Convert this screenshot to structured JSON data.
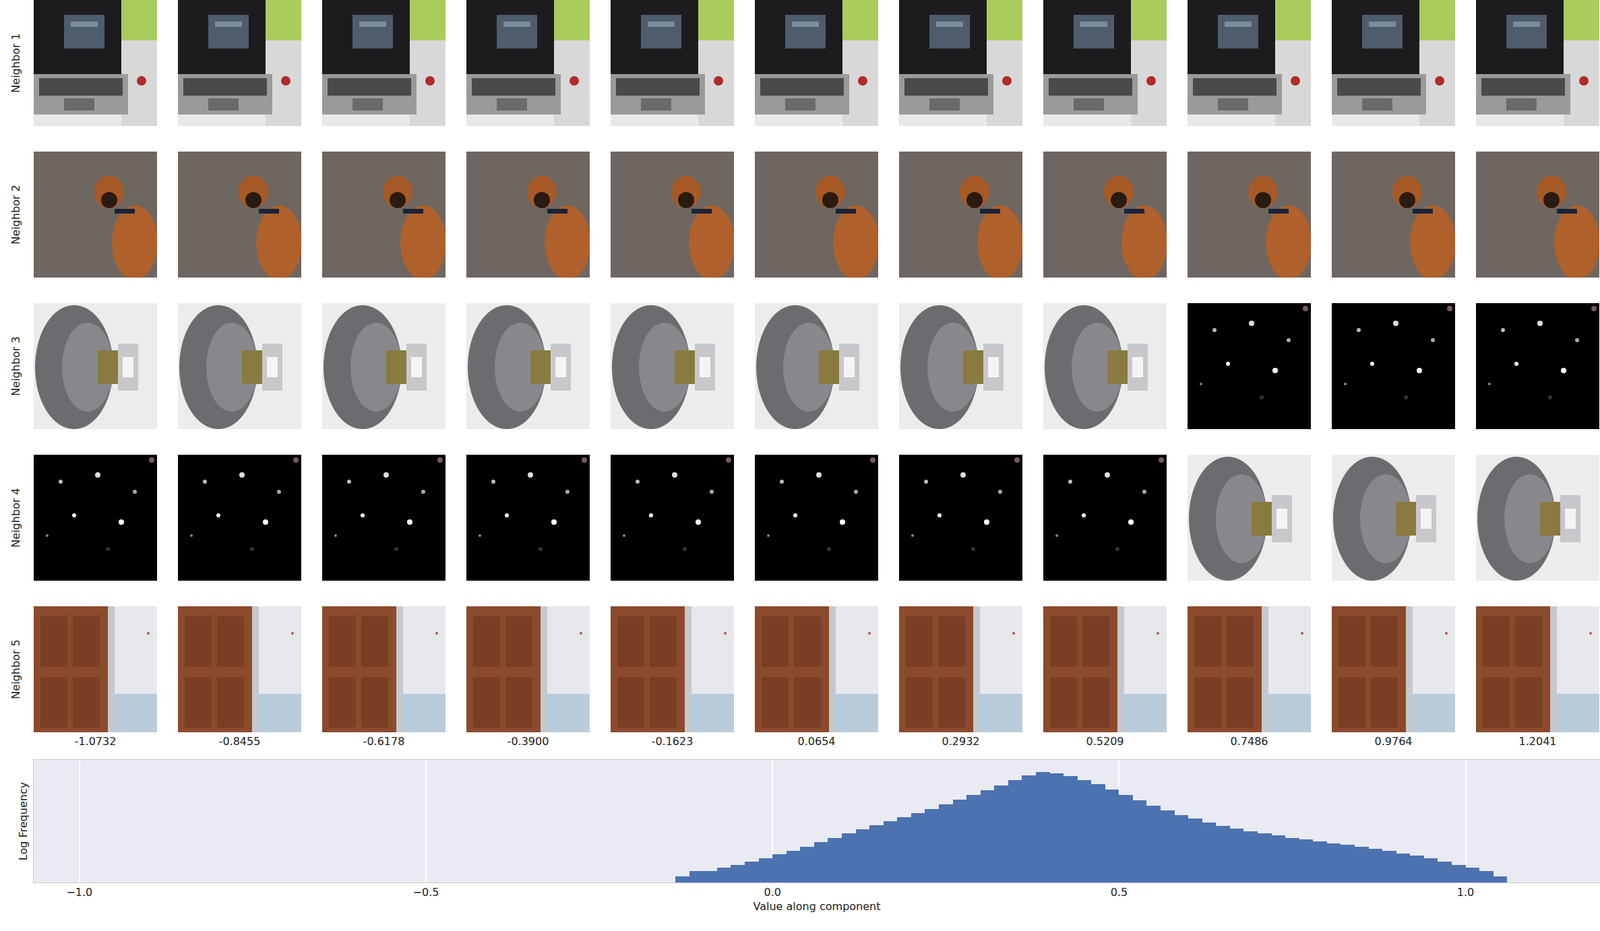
{
  "chart_data": {
    "type": "histogram",
    "x_label": "Value along component",
    "y_label": "Log Frequency",
    "row_labels": [
      "Neighbor 1",
      "Neighbor 2",
      "Neighbor 3",
      "Neighbor 4",
      "Neighbor 5"
    ],
    "column_values": [
      -1.0732,
      -0.8455,
      -0.6178,
      -0.39,
      -0.1623,
      0.0654,
      0.2932,
      0.5209,
      0.7486,
      0.9764,
      1.2041
    ],
    "bins": [
      -0.14,
      -0.12,
      -0.1,
      -0.08,
      -0.06,
      -0.04,
      -0.02,
      0,
      0.02,
      0.04,
      0.06,
      0.08,
      0.1,
      0.12,
      0.14,
      0.16,
      0.18,
      0.2,
      0.22,
      0.24,
      0.26,
      0.28,
      0.3,
      0.32,
      0.34,
      0.36,
      0.38,
      0.4,
      0.42,
      0.44,
      0.46,
      0.48,
      0.5,
      0.52,
      0.54,
      0.56,
      0.58,
      0.6,
      0.62,
      0.64,
      0.66,
      0.68,
      0.7,
      0.72,
      0.74,
      0.76,
      0.78,
      0.8,
      0.82,
      0.84,
      0.86,
      0.88,
      0.9,
      0.92,
      0.94,
      0.96,
      0.98,
      1,
      1.02,
      1.04,
      1.06
    ],
    "counts": [
      1,
      2,
      2,
      3,
      4,
      6,
      9,
      14,
      22,
      35,
      60,
      100,
      170,
      280,
      450,
      700,
      1100,
      1800,
      3000,
      5200,
      9000,
      16000,
      28000,
      50000,
      90000,
      160000,
      230000,
      210000,
      150000,
      95000,
      55000,
      30000,
      16000,
      8500,
      4600,
      2600,
      1500,
      950,
      620,
      420,
      300,
      220,
      170,
      130,
      100,
      80,
      65,
      52,
      42,
      34,
      27,
      21,
      16,
      12,
      9,
      6,
      4,
      3,
      2,
      1
    ],
    "color": "#4c72b0",
    "xlim": [
      -1.066,
      1.194
    ],
    "xticks": [
      {
        "value": -1,
        "label": "−1.0"
      },
      {
        "value": -0.5,
        "label": "−0.5"
      },
      {
        "value": 0,
        "label": "0.0"
      },
      {
        "value": 0.5,
        "label": "0.5"
      },
      {
        "value": 1,
        "label": "1.0"
      }
    ],
    "ylim": [
      0.5,
      1000000
    ],
    "log": "y",
    "grid": true,
    "tick_labels": "x"
  }
}
